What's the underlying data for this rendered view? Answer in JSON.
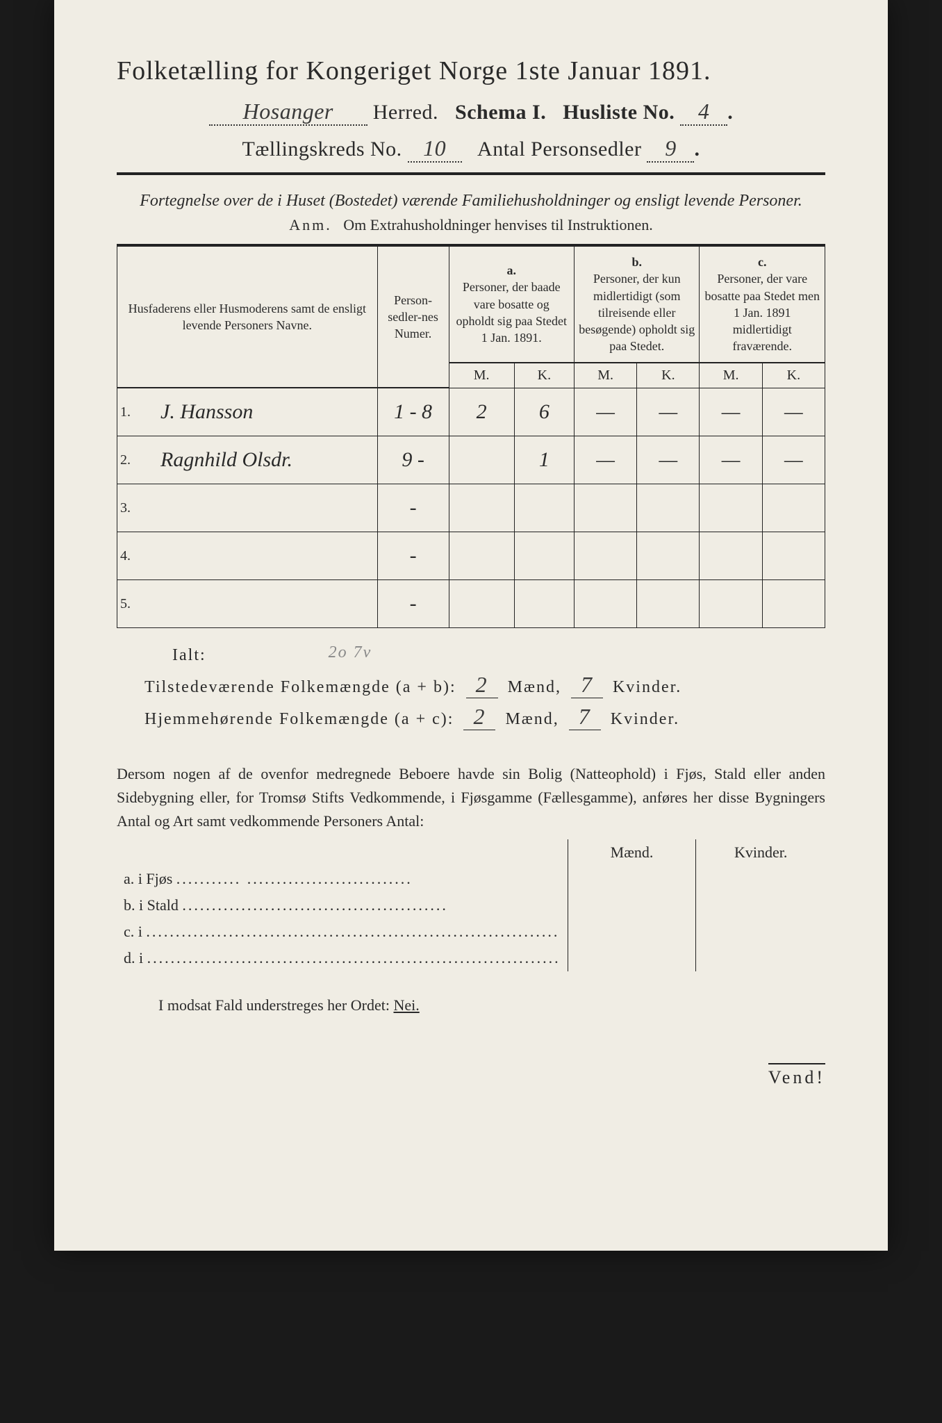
{
  "title": "Folketælling for Kongeriget Norge 1ste Januar 1891.",
  "header": {
    "herred_value": "Hosanger",
    "herred_label": "Herred.",
    "schema_label": "Schema I.",
    "husliste_label": "Husliste No.",
    "husliste_value": "4",
    "kreds_label": "Tællingskreds No.",
    "kreds_value": "10",
    "antal_label": "Antal Personsedler",
    "antal_value": "9"
  },
  "subtitle": "Fortegnelse over de i Huset (Bostedet) værende Familiehusholdninger og ensligt levende Personer.",
  "anm_label": "Anm.",
  "anm_text": "Om Extrahusholdninger henvises til Instruktionen.",
  "columns": {
    "name": "Husfaderens eller Husmoderens samt de ensligt levende Personers Navne.",
    "numer": "Person-sedler-nes Numer.",
    "a_label": "a.",
    "a_text": "Personer, der baade vare bosatte og opholdt sig paa Stedet 1 Jan. 1891.",
    "b_label": "b.",
    "b_text": "Personer, der kun midlertidigt (som tilreisende eller besøgende) opholdt sig paa Stedet.",
    "c_label": "c.",
    "c_text": "Personer, der vare bosatte paa Stedet men 1 Jan. 1891 midlertidigt fraværende.",
    "m": "M.",
    "k": "K."
  },
  "rows": [
    {
      "n": "1.",
      "name": "J. Hansson",
      "numer": "1 - 8",
      "a_m": "2",
      "a_k": "6",
      "b_m": "—",
      "b_k": "—",
      "c_m": "—",
      "c_k": "—"
    },
    {
      "n": "2.",
      "name": "Ragnhild Olsdr.",
      "numer": "9 -",
      "a_m": "",
      "a_k": "1",
      "b_m": "—",
      "b_k": "—",
      "c_m": "—",
      "c_k": "—"
    },
    {
      "n": "3.",
      "name": "",
      "numer": "-",
      "a_m": "",
      "a_k": "",
      "b_m": "",
      "b_k": "",
      "c_m": "",
      "c_k": ""
    },
    {
      "n": "4.",
      "name": "",
      "numer": "-",
      "a_m": "",
      "a_k": "",
      "b_m": "",
      "b_k": "",
      "c_m": "",
      "c_k": ""
    },
    {
      "n": "5.",
      "name": "",
      "numer": "-",
      "a_m": "",
      "a_k": "",
      "b_m": "",
      "b_k": "",
      "c_m": "",
      "c_k": ""
    }
  ],
  "ialt": "Ialt:",
  "ialt_faint": "2o 7v",
  "totals": {
    "line1_label": "Tilstedeværende Folkemængde (a + b):",
    "line1_m": "2",
    "line1_k": "7",
    "line2_label": "Hjemmehørende Folkemængde (a + c):",
    "line2_m": "2",
    "line2_k": "7",
    "maend": "Mænd,",
    "kvinder": "Kvinder."
  },
  "para": "Dersom nogen af de ovenfor medregnede Beboere havde sin Bolig (Natteophold) i Fjøs, Stald eller anden Sidebygning eller, for Tromsø Stifts Vedkommende, i Fjøsgamme (Fællesgamme), anføres her disse Bygningers Antal og Art samt vedkommende Personers Antal:",
  "side_cols": {
    "m": "Mænd.",
    "k": "Kvinder."
  },
  "side_rows": [
    {
      "label": "a.  i     Fjøs",
      "dots": "........... ............................"
    },
    {
      "label": "b.  i     Stald",
      "dots": "............................................."
    },
    {
      "label": "c.  i",
      "dots": "......................................................................"
    },
    {
      "label": "d.  i",
      "dots": "......................................................................"
    }
  ],
  "footer": "I modsat Fald understreges her Ordet:",
  "footer_word": "Nei.",
  "vend": "Vend!",
  "colors": {
    "paper": "#f0ede4",
    "ink": "#2a2a2a",
    "background": "#1a1a1a"
  }
}
